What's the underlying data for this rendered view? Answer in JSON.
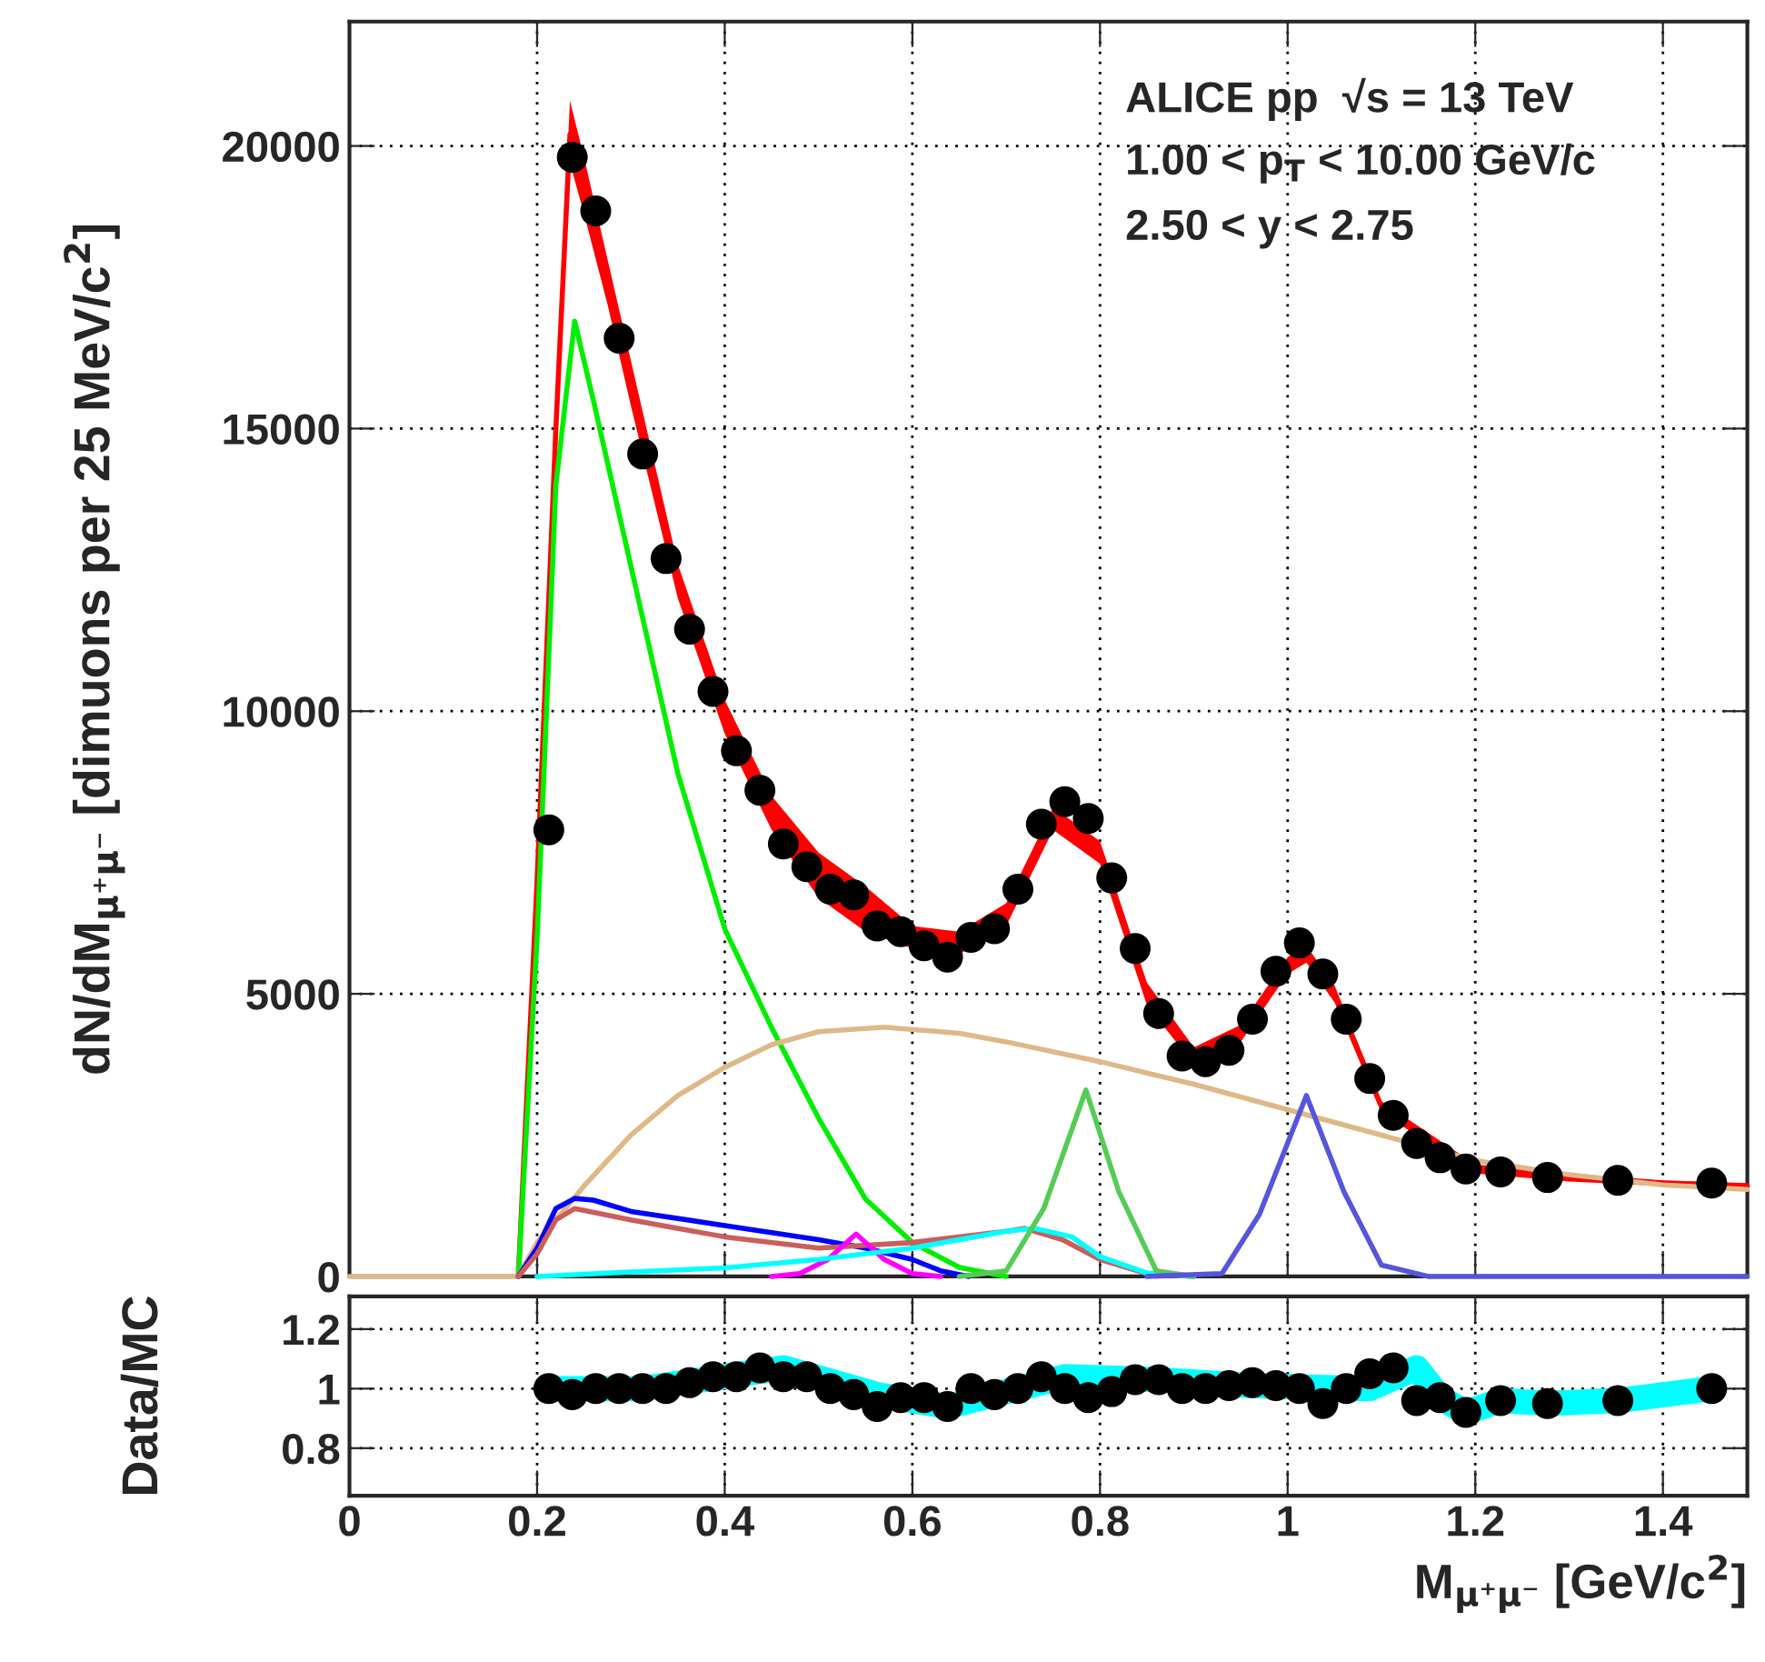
{
  "chart_data": [
    {
      "type": "scatter",
      "ylabel": "dN/dM$_{μ⁺μ⁻}$ [dimuons per 25 MeV/c$^{2}$]",
      "annotations": [
        "ALICE pp  √s = 13 TeV",
        "1.00 < p$_{T}$ < 10.00 GeV/c",
        "2.50 < y < 2.75"
      ],
      "xlim": [
        0,
        1.49
      ],
      "xticks": [
        0,
        0.2,
        0.4,
        0.6,
        0.8,
        1.0,
        1.2,
        1.4
      ],
      "ylim": [
        0,
        22200
      ],
      "yticks": [
        0,
        5000,
        10000,
        15000,
        20000
      ],
      "tick_labels": "y",
      "grid": true,
      "series": [
        {
          "type": "line",
          "color": "#ff0000",
          "x": [
            0.18,
            0.2,
            0.22,
            0.235,
            0.25,
            0.275,
            0.3,
            0.35,
            0.4,
            0.45,
            0.5,
            0.55,
            0.6,
            0.65,
            0.7,
            0.75,
            0.8,
            0.85,
            0.9,
            0.95,
            1.0,
            1.02,
            1.05,
            1.1,
            1.2,
            1.3,
            1.4,
            1.49
          ],
          "values": [
            0,
            7000,
            15000,
            20200,
            19300,
            17600,
            15800,
            12300,
            9900,
            8200,
            7100,
            6500,
            6000,
            5900,
            6400,
            8100,
            7500,
            5000,
            3900,
            4300,
            5500,
            5700,
            5000,
            3000,
            1900,
            1750,
            1650,
            1600
          ],
          "lower": [
            0,
            6700,
            14600,
            19700,
            18800,
            17200,
            15400,
            12000,
            9600,
            7900,
            6700,
            6100,
            5800,
            5700,
            6200,
            7900,
            7300,
            4800,
            3750,
            4150,
            5350,
            5550,
            4850,
            2900,
            1820,
            1680,
            1600,
            1550
          ],
          "upper": [
            0,
            7300,
            15400,
            20800,
            19800,
            18000,
            16200,
            12600,
            10200,
            8500,
            7500,
            6900,
            6200,
            6100,
            6600,
            8300,
            7700,
            5200,
            4050,
            4450,
            5650,
            5850,
            5150,
            3100,
            1980,
            1820,
            1700,
            1650
          ]
        },
        {
          "type": "line",
          "color": "#00ee00",
          "x": [
            0.18,
            0.2,
            0.22,
            0.24,
            0.26,
            0.29,
            0.35,
            0.4,
            0.45,
            0.5,
            0.55,
            0.6,
            0.65,
            0.7
          ],
          "values": [
            0,
            6000,
            14000,
            16900,
            15500,
            13300,
            8900,
            6150,
            4400,
            2800,
            1370,
            600,
            160,
            0
          ]
        },
        {
          "type": "line",
          "color": "#deb887",
          "x": [
            0,
            0.18,
            0.2,
            0.25,
            0.3,
            0.35,
            0.4,
            0.45,
            0.5,
            0.57,
            0.65,
            0.7,
            0.8,
            0.9,
            1.0,
            1.1,
            1.2,
            1.3,
            1.4,
            1.49
          ],
          "values": [
            0,
            0,
            600,
            1600,
            2500,
            3200,
            3700,
            4100,
            4330,
            4410,
            4300,
            4150,
            3800,
            3400,
            2950,
            2500,
            2050,
            1800,
            1620,
            1540
          ]
        },
        {
          "type": "line",
          "color": "#0000ff",
          "x": [
            0.18,
            0.2,
            0.22,
            0.24,
            0.26,
            0.3,
            0.4,
            0.5,
            0.55,
            0.6,
            0.63,
            0.66
          ],
          "values": [
            0,
            500,
            1200,
            1380,
            1350,
            1150,
            900,
            650,
            500,
            300,
            100,
            0
          ]
        },
        {
          "type": "line",
          "color": "#cd5c5c",
          "x": [
            0.18,
            0.2,
            0.22,
            0.24,
            0.3,
            0.4,
            0.5,
            0.6,
            0.7,
            0.72,
            0.76,
            0.8,
            0.85,
            0.9
          ],
          "values": [
            0,
            400,
            1000,
            1200,
            1000,
            700,
            500,
            600,
            800,
            850,
            650,
            300,
            50,
            0
          ]
        },
        {
          "type": "line",
          "color": "#ff00ff",
          "x": [
            0.45,
            0.48,
            0.51,
            0.54,
            0.57,
            0.6,
            0.63
          ],
          "values": [
            0,
            50,
            300,
            750,
            300,
            50,
            0
          ]
        },
        {
          "type": "line",
          "color": "#00ffff",
          "x": [
            0.2,
            0.3,
            0.4,
            0.5,
            0.6,
            0.7,
            0.73,
            0.77,
            0.8,
            0.85,
            0.9
          ],
          "values": [
            0,
            80,
            150,
            300,
            500,
            800,
            850,
            700,
            350,
            60,
            0
          ]
        },
        {
          "type": "line",
          "color": "#55cc55",
          "x": [
            0.65,
            0.7,
            0.74,
            0.785,
            0.82,
            0.86,
            0.9
          ],
          "values": [
            0,
            100,
            1200,
            3300,
            1500,
            100,
            0
          ]
        },
        {
          "type": "line",
          "color": "#5555dd",
          "x": [
            0.85,
            0.93,
            0.97,
            1.02,
            1.06,
            1.1,
            1.15,
            1.49
          ],
          "values": [
            0,
            50,
            1100,
            3200,
            1500,
            200,
            0,
            0
          ]
        },
        {
          "marker": "circle",
          "color": "#000000",
          "x": [
            0.2125,
            0.2375,
            0.2625,
            0.2875,
            0.3125,
            0.3375,
            0.3625,
            0.3875,
            0.4125,
            0.4375,
            0.4625,
            0.4875,
            0.5125,
            0.5375,
            0.5625,
            0.5875,
            0.6125,
            0.6375,
            0.6625,
            0.6875,
            0.7125,
            0.7375,
            0.7625,
            0.7875,
            0.8125,
            0.8375,
            0.8625,
            0.8875,
            0.9125,
            0.9375,
            0.9625,
            0.9875,
            1.0125,
            1.0375,
            1.0625,
            1.0875,
            1.1125,
            1.1375,
            1.1625,
            1.19,
            1.227,
            1.277,
            1.352,
            1.452
          ],
          "values": [
            7900,
            19800,
            18850,
            16600,
            14550,
            12700,
            11450,
            10350,
            9300,
            8600,
            7650,
            7250,
            6850,
            6750,
            6200,
            6100,
            5850,
            5650,
            6000,
            6150,
            6850,
            8000,
            8400,
            8100,
            7050,
            5800,
            4650,
            3900,
            3800,
            4000,
            4550,
            5400,
            5900,
            5350,
            4550,
            3500,
            2850,
            2350,
            2100,
            1900,
            1850,
            1750,
            1700,
            1650
          ]
        }
      ]
    },
    {
      "type": "scatter",
      "xlabel": "M$_{μ⁺μ⁻}$ [GeV/c$^{2}$]",
      "ylabel": "Data/MC",
      "xlim": [
        0,
        1.49
      ],
      "xticks": [
        0,
        0.2,
        0.4,
        0.6,
        0.8,
        {
          "value": 1.0,
          "label": "1"
        },
        1.2,
        1.4
      ],
      "ylim": [
        0.64,
        1.31
      ],
      "yticks": [
        0.8,
        {
          "value": 1.0,
          "label": "1"
        },
        1.2
      ],
      "grid": true,
      "series": [
        {
          "type": "line",
          "color": "#00ffff",
          "x": [
            0.2125,
            0.3125,
            0.4625,
            0.5625,
            0.6375,
            0.7625,
            0.8625,
            0.9625,
            1.0875,
            1.1375,
            1.1625,
            1.19,
            1.227,
            1.277,
            1.352,
            1.452
          ],
          "values": [
            1.0,
            1.0,
            1.07,
            0.98,
            0.94,
            1.04,
            1.03,
            1.01,
            1.0,
            1.07,
            0.97,
            0.92,
            0.96,
            0.95,
            0.96,
            1.0
          ]
        },
        {
          "marker": "circle",
          "color": "#000000",
          "x": [
            0.2125,
            0.2375,
            0.2625,
            0.2875,
            0.3125,
            0.3375,
            0.3625,
            0.3875,
            0.4125,
            0.4375,
            0.4625,
            0.4875,
            0.5125,
            0.5375,
            0.5625,
            0.5875,
            0.6125,
            0.6375,
            0.6625,
            0.6875,
            0.7125,
            0.7375,
            0.7625,
            0.7875,
            0.8125,
            0.8375,
            0.8625,
            0.8875,
            0.9125,
            0.9375,
            0.9625,
            0.9875,
            1.0125,
            1.0375,
            1.0625,
            1.0875,
            1.1125,
            1.1375,
            1.1625,
            1.19,
            1.227,
            1.277,
            1.352,
            1.452
          ],
          "values": [
            1.0,
            0.98,
            1.0,
            1.0,
            1.0,
            1.0,
            1.02,
            1.04,
            1.04,
            1.07,
            1.04,
            1.04,
            1.0,
            0.98,
            0.94,
            0.97,
            0.97,
            0.94,
            1.0,
            0.98,
            1.0,
            1.04,
            1.0,
            0.97,
            0.99,
            1.03,
            1.03,
            1.0,
            1.0,
            1.01,
            1.02,
            1.01,
            1.0,
            0.95,
            1.0,
            1.05,
            1.07,
            0.96,
            0.97,
            0.92,
            0.96,
            0.95,
            0.96,
            1.0
          ]
        }
      ]
    }
  ]
}
